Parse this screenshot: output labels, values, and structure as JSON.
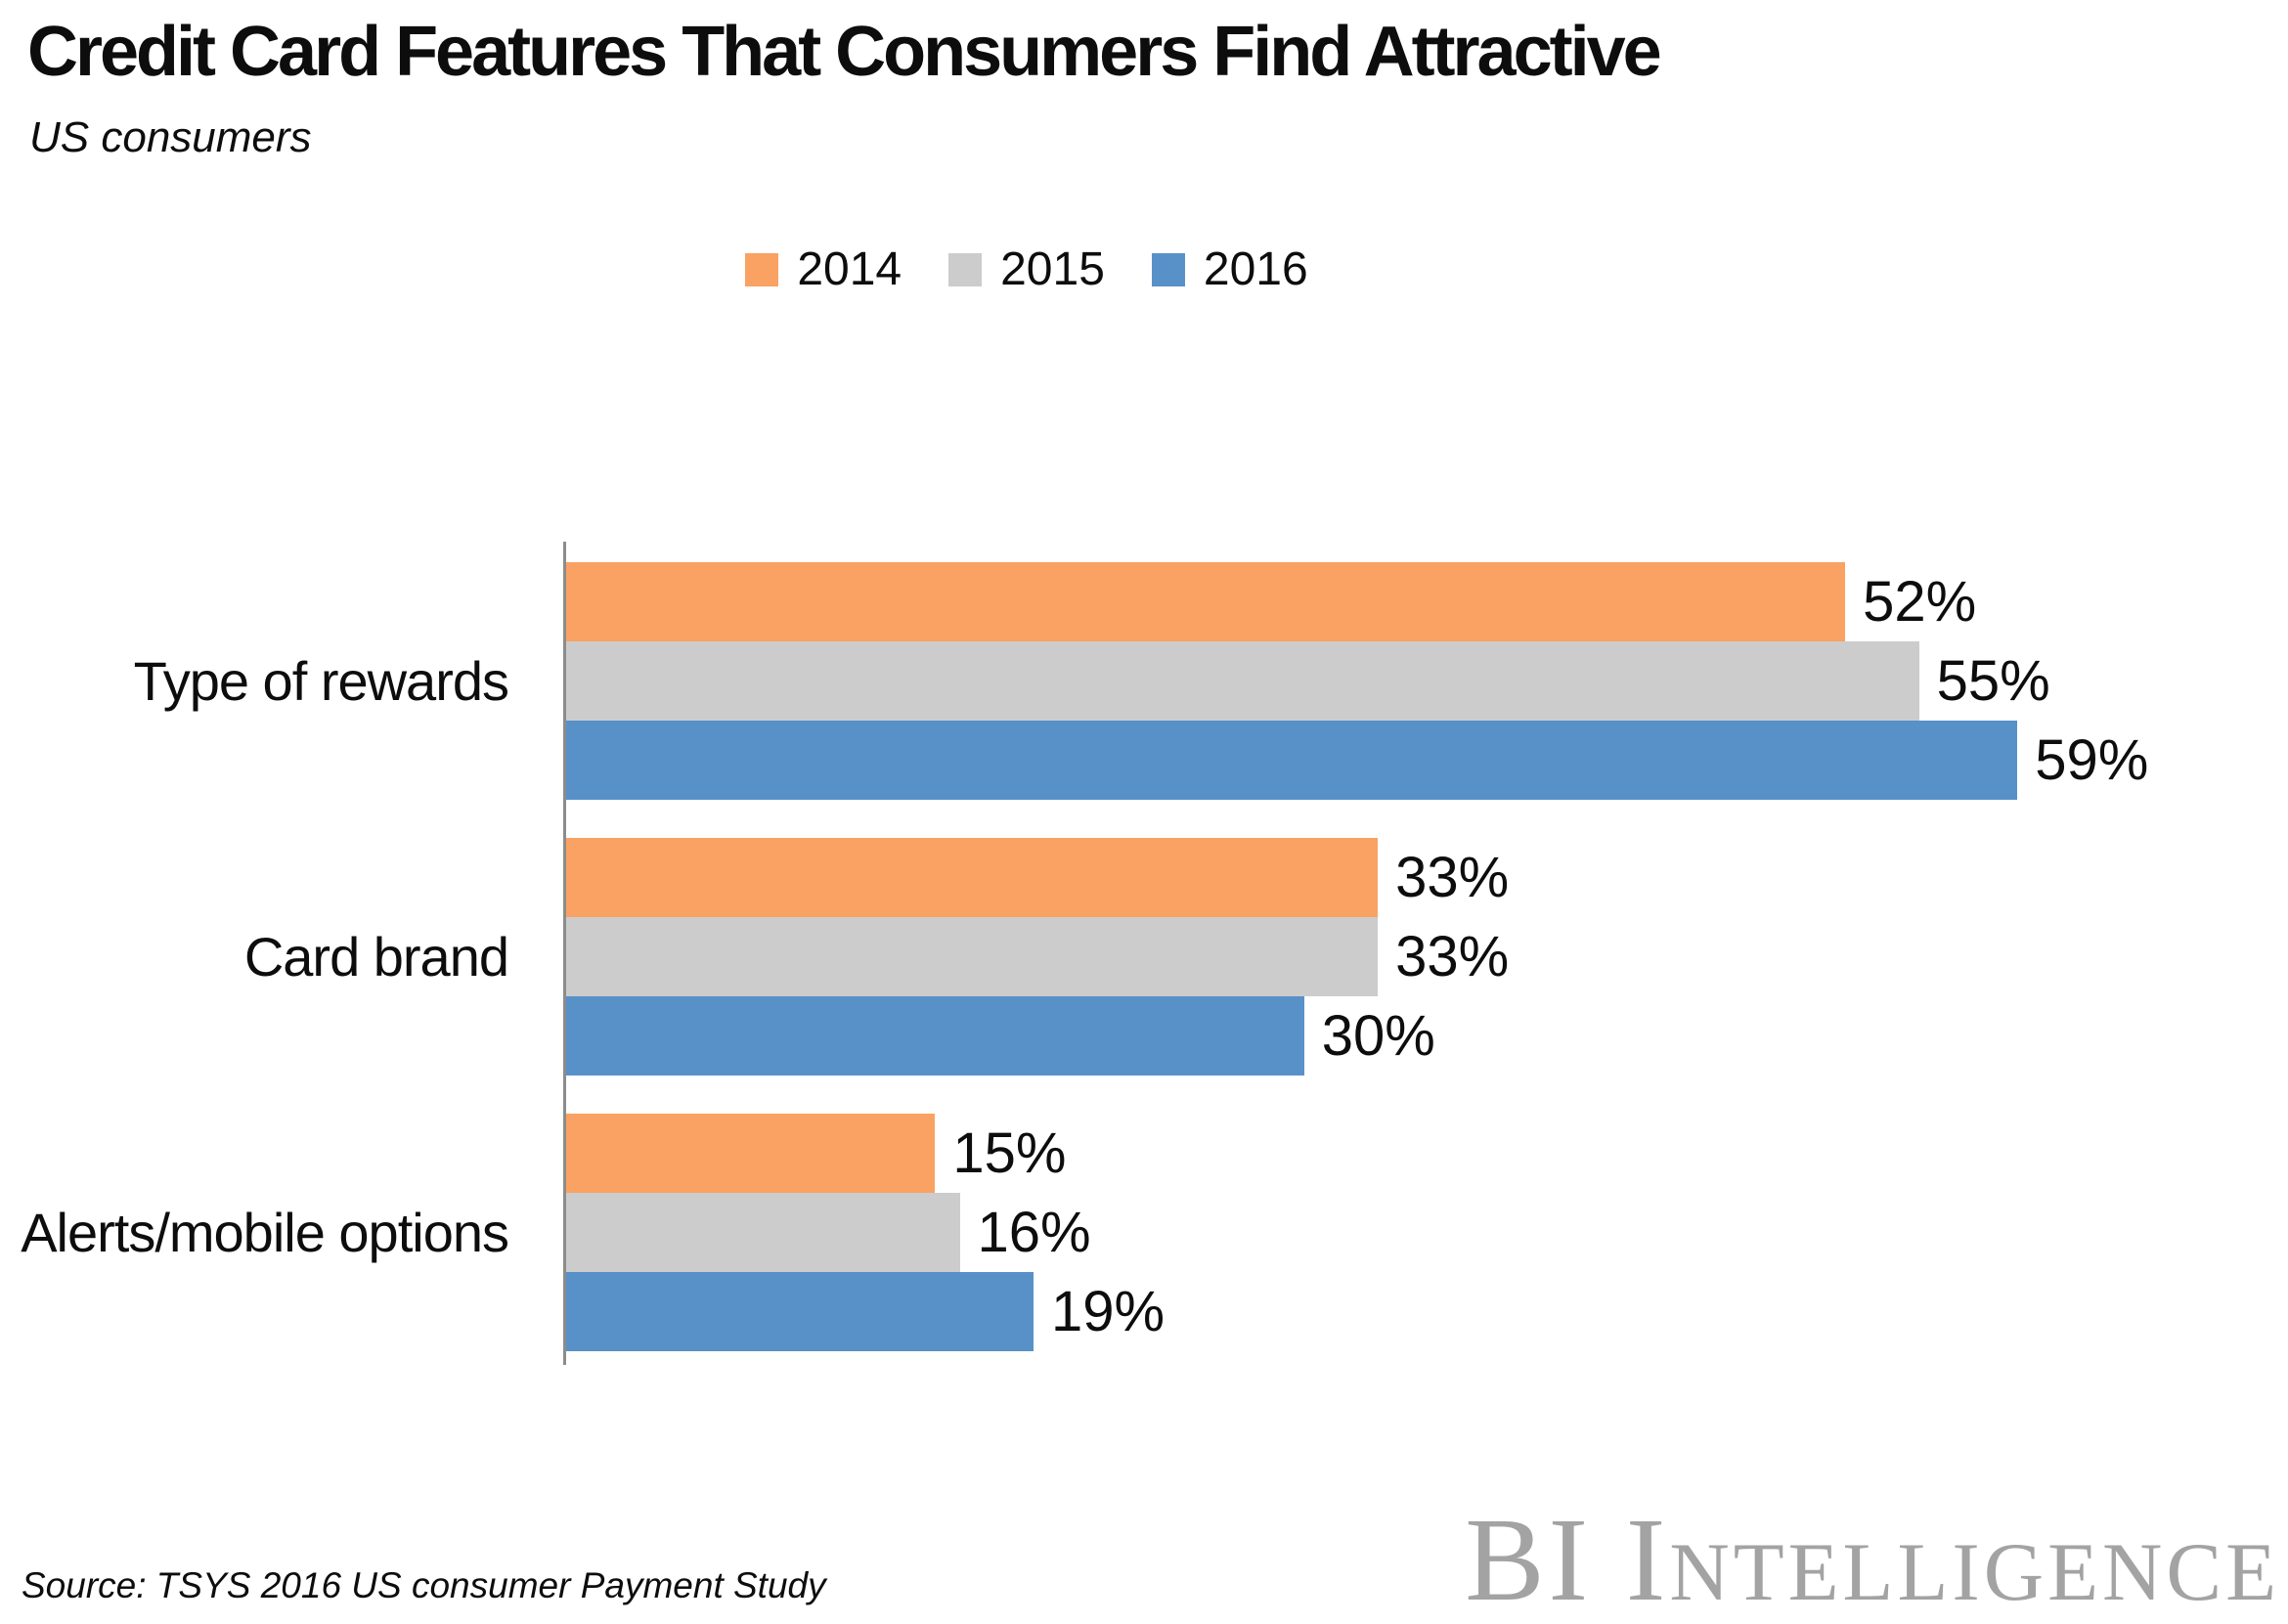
{
  "title": "Credit Card Features That Consumers Find Attractive",
  "subtitle": "US consumers",
  "source": "Source: TSYS 2016 US consumer Payment Study",
  "brand": "BI Intelligence",
  "colors": {
    "series_2014": "#F9A263",
    "series_2015": "#CCCCCC",
    "series_2016": "#5891C8",
    "axis_line": "#8C8C8C",
    "brand_gray": "#A3A3A3"
  },
  "chart_data": {
    "type": "bar",
    "orientation": "horizontal",
    "title": "Credit Card Features That Consumers Find Attractive",
    "subtitle": "US consumers",
    "categories": [
      "Type of rewards",
      "Card brand",
      "Alerts/mobile options"
    ],
    "series": [
      {
        "name": "2014",
        "color": "#F9A263",
        "values": [
          52,
          33,
          15
        ]
      },
      {
        "name": "2015",
        "color": "#CCCCCC",
        "values": [
          55,
          33,
          16
        ]
      },
      {
        "name": "2016",
        "color": "#5891C8",
        "values": [
          59,
          30,
          19
        ]
      }
    ],
    "value_suffix": "%",
    "data_labels": true,
    "axis_max": 70,
    "xlim": [
      0,
      70
    ],
    "grid": false,
    "legend_position": "top",
    "legend_entries": [
      "2014",
      "2015",
      "2016"
    ]
  }
}
